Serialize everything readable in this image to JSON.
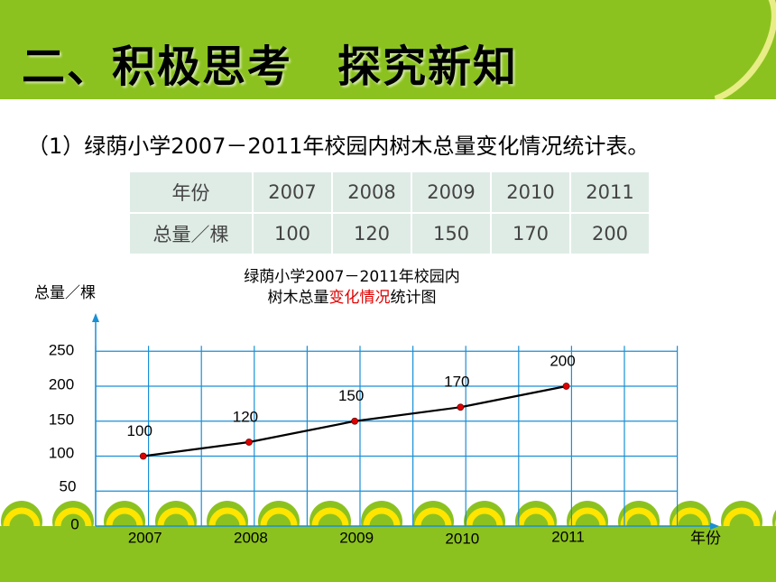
{
  "header": {
    "title": "二、积极思考　探究新知"
  },
  "subtitle": "（1）绿荫小学2007－2011年校园内树木总量变化情况统计表。",
  "table": {
    "row_year_label": "年份",
    "row_total_label": "总量／棵",
    "years": [
      "2007",
      "2008",
      "2009",
      "2010",
      "2011"
    ],
    "totals": [
      "100",
      "120",
      "150",
      "170",
      "200"
    ]
  },
  "chart_data": {
    "type": "line",
    "title_line1": "绿荫小学2007－2011年校园内",
    "title_line2_a": "树木总量",
    "title_line2_b": "变化情况",
    "title_line2_c": "统计图",
    "ylabel": "总量／棵",
    "xlabel": "年份",
    "categories": [
      "2007",
      "2008",
      "2009",
      "2010",
      "2011"
    ],
    "values": [
      100,
      120,
      150,
      170,
      200
    ],
    "y_ticks": [
      0,
      50,
      100,
      150,
      200,
      250
    ],
    "ylim": [
      0,
      250
    ],
    "grid": true,
    "colors": {
      "line": "#000000",
      "point": "#e00000",
      "grid": "#1a8fd6",
      "axis": "#1a8fd6",
      "highlight": "#e00000"
    }
  }
}
